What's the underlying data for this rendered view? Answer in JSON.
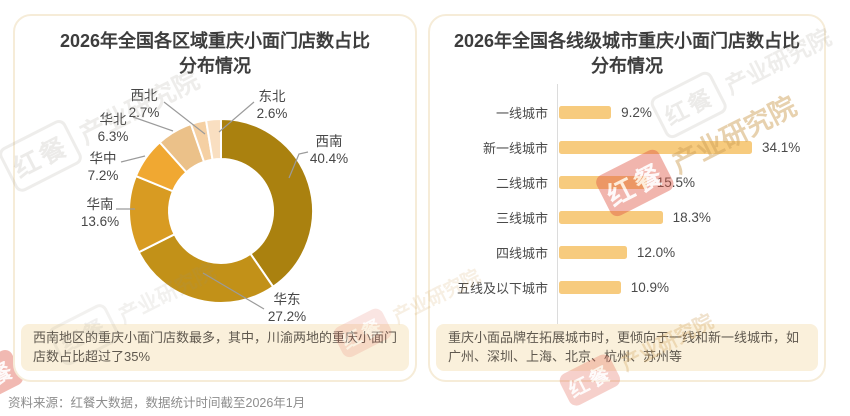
{
  "source_note": "资料来源：红餐大数据，数据统计时间截至2026年1月",
  "watermark": {
    "brand": "红餐",
    "org": "产业研究院"
  },
  "panels": [
    {
      "title_lines": [
        "2026年全国各区域重庆小面门店数占比",
        "分布情况"
      ],
      "note": "西南地区的重庆小面门店数最多，其中，川渝两地的重庆小面门店数占比超过了35%"
    },
    {
      "title_lines": [
        "2026年全国各线级城市重庆小面门店数占比",
        "分布情况"
      ],
      "note": "重庆小面品牌在拓展城市时，更倾向于一线和新一线城市，如广州、深圳、上海、北京、杭州、苏州等"
    }
  ],
  "chart_data": [
    {
      "type": "pie",
      "subtype": "donut",
      "title": "2026年全国各区域重庆小面门店数占比分布情况",
      "labels": [
        "西南",
        "华东",
        "华南",
        "华中",
        "华北",
        "西北",
        "东北"
      ],
      "values": [
        40.4,
        27.2,
        13.6,
        7.2,
        6.3,
        2.7,
        2.6
      ],
      "display_values": [
        "40.4%",
        "27.2%",
        "13.6%",
        "7.2%",
        "6.3%",
        "2.7%",
        "2.6%"
      ],
      "unit": "%",
      "colors": [
        "#AA810F",
        "#C29118",
        "#D89B22",
        "#F0A832",
        "#EBC189",
        "#F5D0A3",
        "#F9DFC1"
      ],
      "start_angle": "12-oclock-clockwise",
      "inner_radius_ratio": 0.57,
      "segment_gap_color": "#ffffff"
    },
    {
      "type": "bar",
      "orientation": "horizontal",
      "title": "2026年全国各线级城市重庆小面门店数占比分布情况",
      "categories": [
        "一线城市",
        "新一线城市",
        "二线城市",
        "三线城市",
        "四线城市",
        "五线及以下城市"
      ],
      "values": [
        9.2,
        34.1,
        15.5,
        18.3,
        12.0,
        10.9
      ],
      "display_values": [
        "9.2%",
        "34.1%",
        "15.5%",
        "18.3%",
        "12.0%",
        "10.9%"
      ],
      "unit": "%",
      "bar_color": "#F7CB7E",
      "xlim": [
        0,
        40
      ],
      "grid": false,
      "value_label_position": "right-of-bar"
    }
  ]
}
